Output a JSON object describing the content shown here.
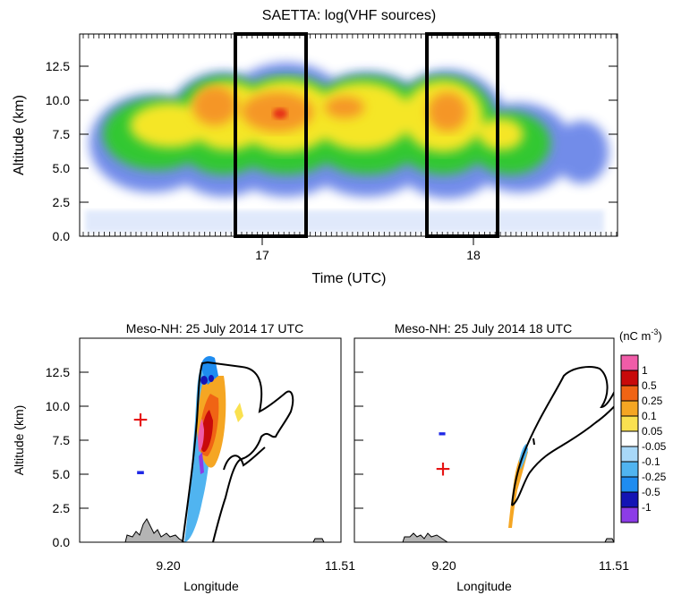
{
  "top": {
    "title": "SAETTA: log(VHF sources)",
    "xlabel": "Time (UTC)",
    "ylabel": "Altitude (km)",
    "yticks": [
      "0.0",
      "2.5",
      "5.0",
      "7.5",
      "10.0",
      "12.5"
    ],
    "xticks": [
      "17",
      "18"
    ]
  },
  "bottom_left": {
    "title": "Meso-NH: 25 July 2014 17 UTC",
    "xlabel": "Longitude",
    "ylabel": "Altitude (km)",
    "yticks": [
      "0.0",
      "2.5",
      "5.0",
      "7.5",
      "10.0",
      "12.5"
    ],
    "xticks": [
      "9.20",
      "11.51"
    ],
    "plus": "+",
    "minus": "-"
  },
  "bottom_right": {
    "title": "Meso-NH: 25 July 2014 18 UTC",
    "xlabel": "Longitude",
    "xticks": [
      "9.20",
      "11.51"
    ],
    "plus": "+",
    "minus": "-"
  },
  "colorbar": {
    "unit_label": "(nC m",
    "unit_sup": "-3",
    "unit_close": ")",
    "labels": [
      "1",
      "0.5",
      "0.25",
      "0.1",
      "0.05",
      "-0.05",
      "-0.1",
      "-0.25",
      "-0.5",
      "-1"
    ],
    "colors": [
      "#f05ca8",
      "#c80a0a",
      "#f06414",
      "#f5a623",
      "#fae150",
      "#ffffff",
      "#a8d8f8",
      "#50b4f0",
      "#1e8cf0",
      "#1414b4",
      "#8c3ce6"
    ]
  },
  "chart_data": [
    {
      "type": "heatmap",
      "title": "SAETTA: log(VHF sources)",
      "xlabel": "Time (UTC)",
      "ylabel": "Altitude (km)",
      "xlim": [
        16.1,
        18.8
      ],
      "ylim": [
        0,
        14.8
      ],
      "highlight_windows_utc": [
        [
          16.85,
          17.2
        ],
        [
          17.75,
          18.1
        ]
      ],
      "peak_region": {
        "time": 17.08,
        "altitude_km": 9.2
      }
    },
    {
      "type": "heatmap",
      "title": "Meso-NH: 25 July 2014 17 UTC",
      "xlabel": "Longitude",
      "ylabel": "Altitude (km)",
      "ylim": [
        0,
        14.8
      ],
      "charge_markers": [
        {
          "sign": "+",
          "altitude_km": 8.7
        },
        {
          "sign": "-",
          "altitude_km": 5.0
        }
      ]
    },
    {
      "type": "heatmap",
      "title": "Meso-NH: 25 July 2014 18 UTC",
      "xlabel": "Longitude",
      "ylim": [
        0,
        14.8
      ],
      "charge_markers": [
        {
          "sign": "-",
          "altitude_km": 7.8
        },
        {
          "sign": "+",
          "altitude_km": 5.2
        }
      ]
    }
  ]
}
